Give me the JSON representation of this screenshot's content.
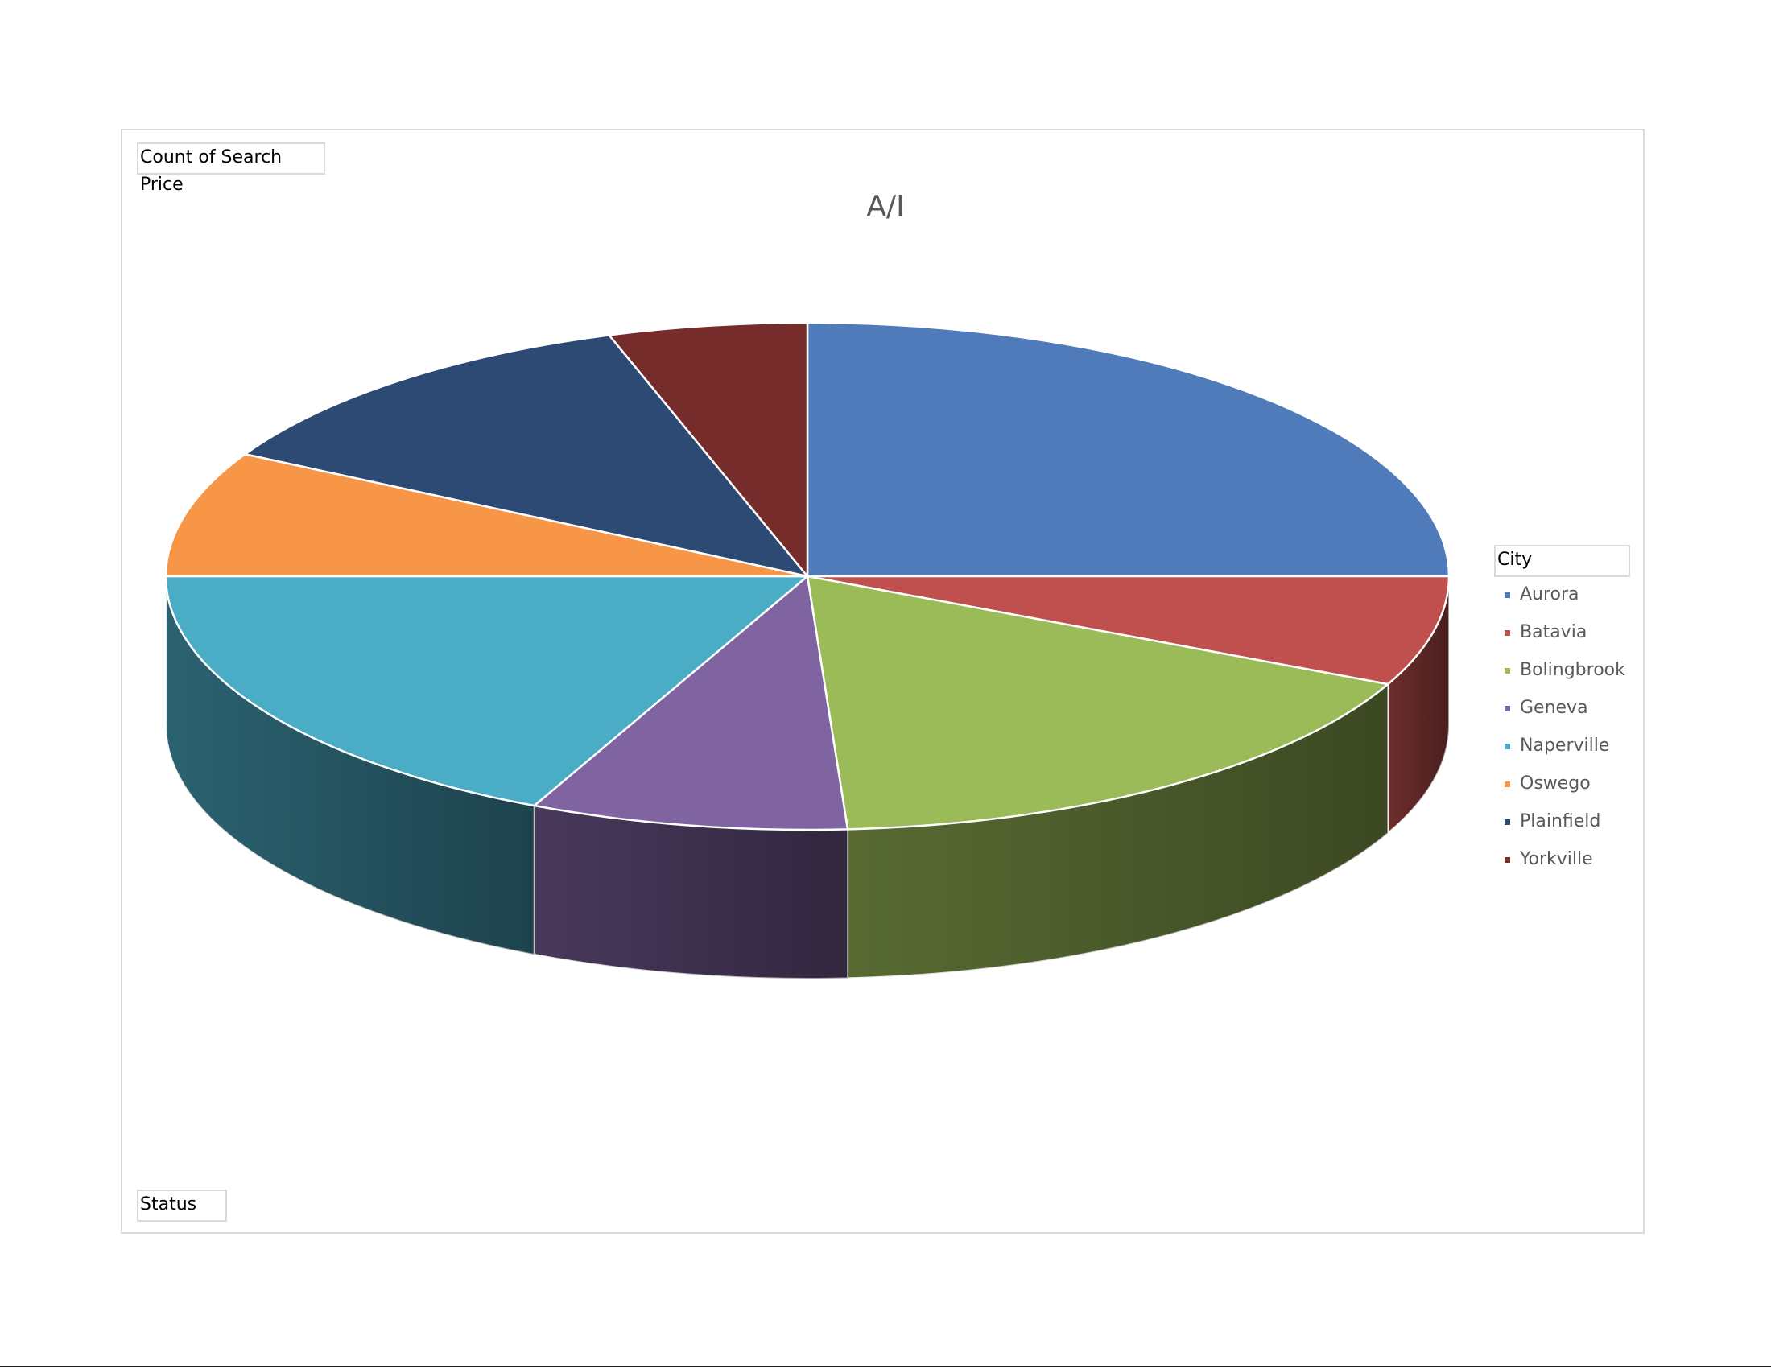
{
  "chart": {
    "title": "A/I",
    "values_field": "Count of Search Price",
    "filter_field": "Status",
    "legend_field": "City"
  },
  "chart_data": {
    "type": "pie",
    "title": "A/I",
    "style": "3d",
    "legend_title": "City",
    "legend_placement": "right",
    "categories": [
      "Aurora",
      "Batavia",
      "Bolingbrook",
      "Geneva",
      "Naperville",
      "Oswego",
      "Plainfield",
      "Yorkville"
    ],
    "values": [
      25,
      7,
      17,
      8,
      18,
      8,
      12,
      5
    ],
    "colors": [
      "#4F7BBA",
      "#C0504D",
      "#9BBB59",
      "#8064A2",
      "#4BACC6",
      "#F79646",
      "#2C4A73",
      "#772C2C"
    ]
  }
}
